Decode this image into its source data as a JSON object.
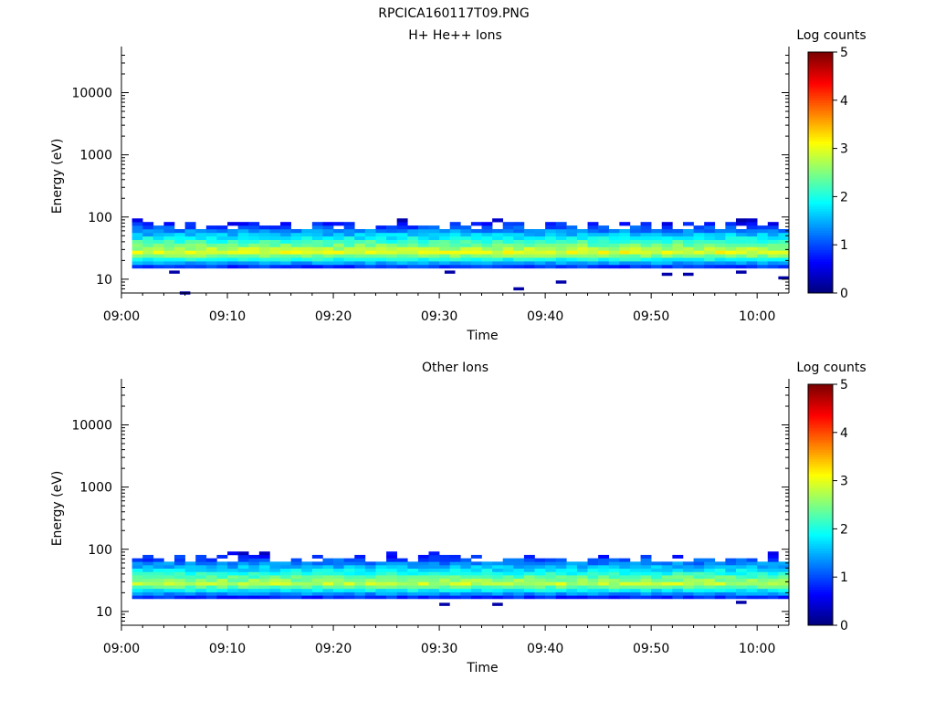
{
  "page": {
    "title": "RPCICA160117T09.PNG"
  },
  "chart_data": [
    {
      "type": "heatmap",
      "title": "H+ He++ Ions",
      "xlabel": "Time",
      "ylabel": "Energy (eV)",
      "x_ticks": [
        "09:00",
        "09:10",
        "09:20",
        "09:30",
        "09:40",
        "09:50",
        "10:00"
      ],
      "x_range": [
        "09:00",
        "10:03"
      ],
      "y_ticks": [
        "10",
        "100",
        "1000",
        "10000"
      ],
      "y_scale": "log",
      "y_range": [
        6,
        45000
      ],
      "colorbar": {
        "label": "Log counts",
        "ticks": [
          "0",
          "1",
          "2",
          "3",
          "4",
          "5"
        ],
        "range": [
          0,
          5
        ],
        "colormap": "jet"
      },
      "bands": {
        "time_start": "09:01",
        "time_end": "10:02.5",
        "energy_min": 15,
        "energy_max": 95,
        "core_energy": 27,
        "core_level": 3.0,
        "edge_level": 1.0
      },
      "sparse_points": [
        {
          "time": "09:04.5",
          "energy": 13,
          "level": 0.2
        },
        {
          "time": "09:05.5",
          "energy": 6,
          "level": 0.2
        },
        {
          "time": "09:30.5",
          "energy": 13,
          "level": 0.2
        },
        {
          "time": "09:37",
          "energy": 7,
          "level": 0.2
        },
        {
          "time": "09:41",
          "energy": 9,
          "level": 0.2
        },
        {
          "time": "09:51",
          "energy": 12,
          "level": 0.2
        },
        {
          "time": "09:53",
          "energy": 12,
          "level": 0.2
        },
        {
          "time": "09:58",
          "energy": 13,
          "level": 0.2
        },
        {
          "time": "10:02",
          "energy": 10.5,
          "level": 0.2
        }
      ]
    },
    {
      "type": "heatmap",
      "title": "Other Ions",
      "xlabel": "Time",
      "ylabel": "Energy (eV)",
      "x_ticks": [
        "09:00",
        "09:10",
        "09:20",
        "09:30",
        "09:40",
        "09:50",
        "10:00"
      ],
      "x_range": [
        "09:00",
        "10:03"
      ],
      "y_ticks": [
        "10",
        "100",
        "1000",
        "10000"
      ],
      "y_scale": "log",
      "y_range": [
        6,
        45000
      ],
      "colorbar": {
        "label": "Log counts",
        "ticks": [
          "0",
          "1",
          "2",
          "3",
          "4",
          "5"
        ],
        "range": [
          0,
          5
        ],
        "colormap": "jet"
      },
      "bands": {
        "time_start": "09:01",
        "time_end": "10:02.5",
        "energy_min": 16,
        "energy_max": 92,
        "core_energy": 28,
        "core_level": 2.8,
        "edge_level": 1.0
      },
      "sparse_points": [
        {
          "time": "09:30",
          "energy": 13,
          "level": 0.2
        },
        {
          "time": "09:35",
          "energy": 13,
          "level": 0.2
        },
        {
          "time": "09:58",
          "energy": 14,
          "level": 0.2
        }
      ]
    }
  ]
}
